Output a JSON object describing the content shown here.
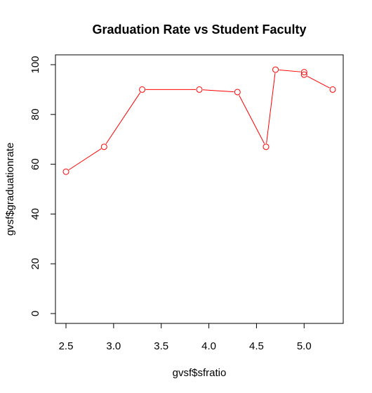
{
  "chart_data": {
    "type": "line",
    "title": "Graduation Rate vs Student Faculty",
    "xlabel": "gvsf$sfratio",
    "ylabel": "gvsf$graduationrate",
    "xlim": [
      2.5,
      5.3
    ],
    "ylim": [
      0,
      100
    ],
    "x_ticks": [
      "2.5",
      "3.0",
      "3.5",
      "4.0",
      "4.5",
      "5.0"
    ],
    "y_ticks": [
      "0",
      "20",
      "40",
      "60",
      "80",
      "100"
    ],
    "series": [
      {
        "color": "#ff0000",
        "marker": "open-circle",
        "points": [
          {
            "x": 2.5,
            "y": 57
          },
          {
            "x": 2.9,
            "y": 67
          },
          {
            "x": 3.3,
            "y": 90
          },
          {
            "x": 3.9,
            "y": 90
          },
          {
            "x": 4.3,
            "y": 89
          },
          {
            "x": 4.6,
            "y": 67
          },
          {
            "x": 4.7,
            "y": 98
          },
          {
            "x": 5.0,
            "y": 97
          },
          {
            "x": 5.0,
            "y": 96
          },
          {
            "x": 5.3,
            "y": 90
          }
        ]
      }
    ],
    "grid": false,
    "legend": "none"
  }
}
